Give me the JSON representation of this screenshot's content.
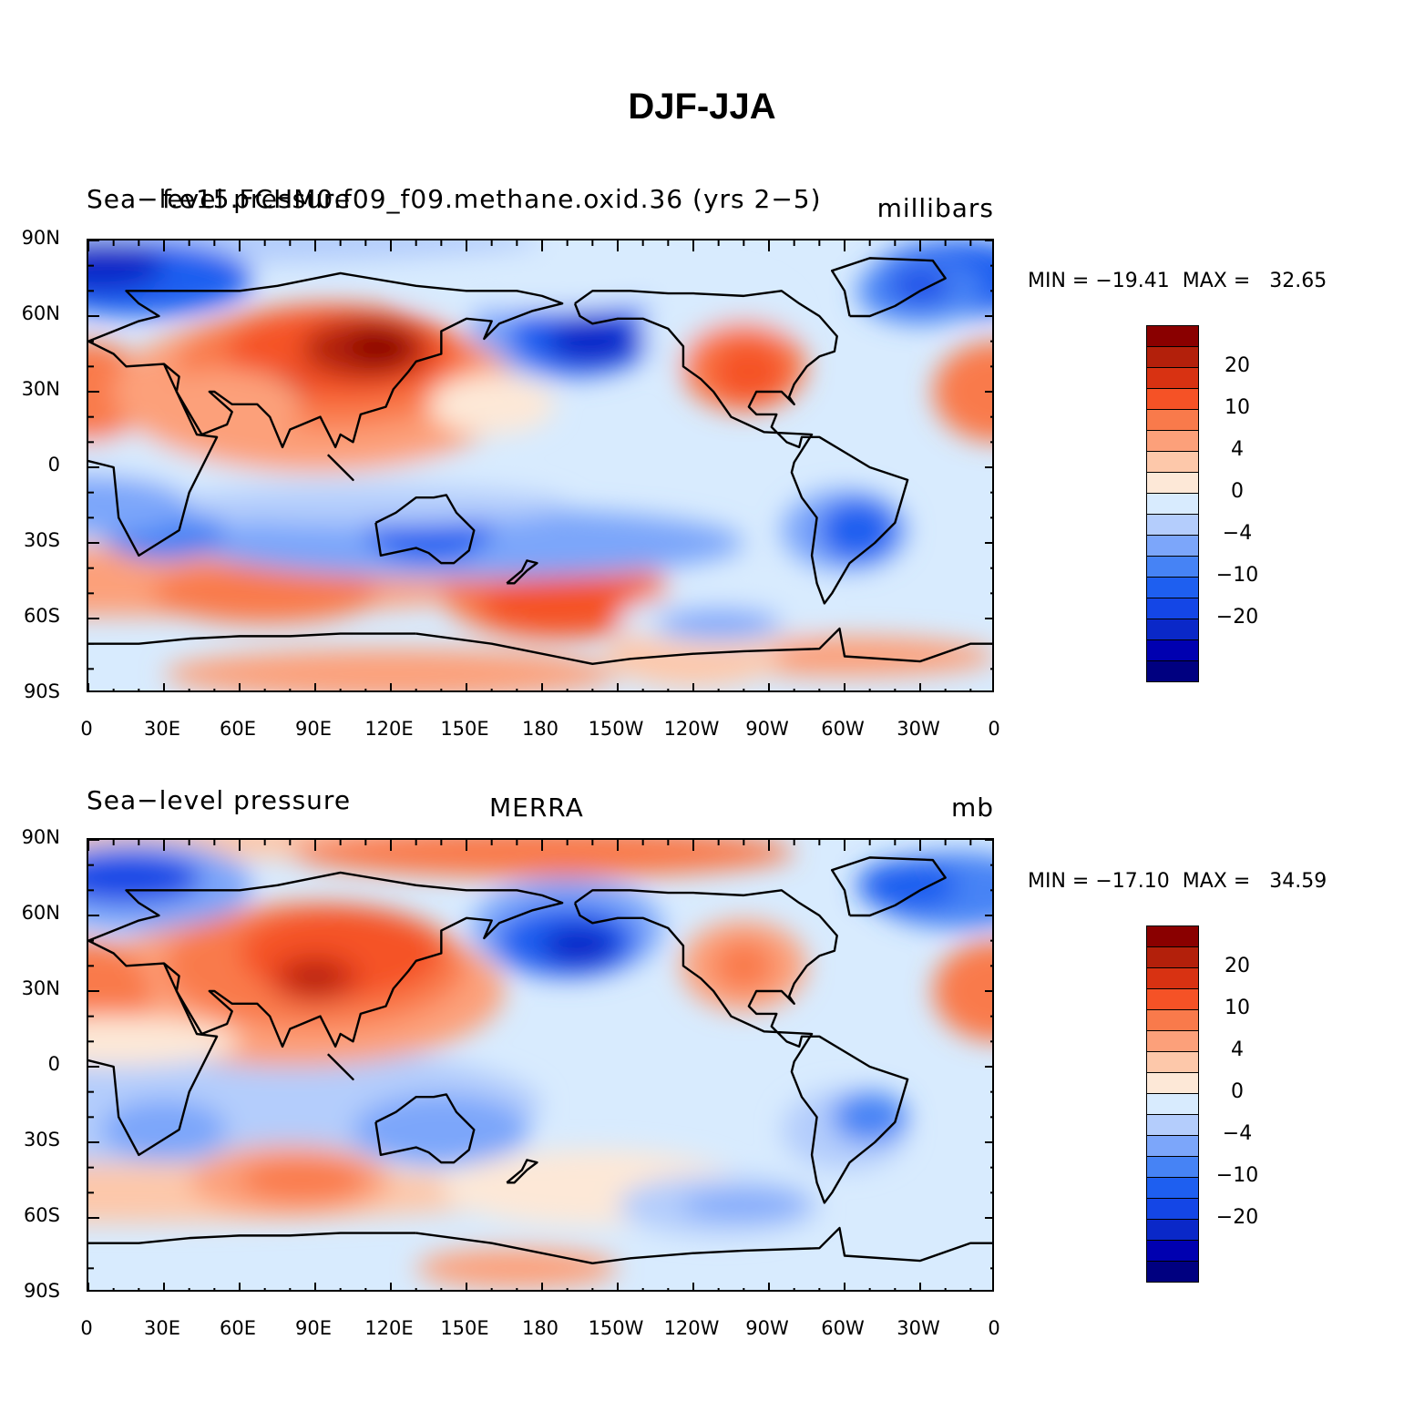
{
  "figure_title": "DJF-JJA",
  "colorbar_colors": [
    "#000080",
    "#0000b0",
    "#0a28c8",
    "#1446e6",
    "#1e5ff0",
    "#4683f5",
    "#7ca6fa",
    "#b4cdfc",
    "#d8ebfe",
    "#fde8d7",
    "#fdc8aa",
    "#fca07a",
    "#f97a4b",
    "#f55226",
    "#d83212",
    "#b3200b",
    "#8a0000"
  ],
  "colorbar_labels": [
    "−20",
    "−10",
    "−4",
    "0",
    "4",
    "10",
    "20"
  ],
  "lat_labels": [
    "90N",
    "60N",
    "30N",
    "0",
    "30S",
    "60S",
    "90S"
  ],
  "lon_labels": [
    "0",
    "30E",
    "60E",
    "90E",
    "120E",
    "150E",
    "180",
    "150W",
    "120W",
    "90W",
    "60W",
    "30W",
    "0"
  ],
  "panels": [
    {
      "left_title": "Sea−level pressure",
      "center_title": "f.e15.FCHM0.f09_f09.methane.oxid.36 (yrs 2−5)",
      "right_title": "millibars",
      "minmax": "MIN = −19.41  MAX =   32.65",
      "chart_data": {
        "type": "heatmap",
        "variable": "Sea-level pressure",
        "units": "millibars",
        "source": "f.e15.FCHM0.f09_f09.methane.oxid.36 (yrs 2-5)",
        "min": -19.41,
        "max": 32.65,
        "x_range": [
          0,
          360
        ],
        "y_range": [
          -90,
          90
        ],
        "contour_levels": [
          -24,
          -20,
          -16,
          -12,
          -10,
          -8,
          -6,
          -4,
          -2,
          0,
          2,
          4,
          6,
          8,
          10,
          12,
          16,
          20,
          24
        ]
      }
    },
    {
      "left_title": "Sea−level pressure",
      "center_title": "MERRA",
      "right_title": "mb",
      "minmax": "MIN = −17.10  MAX =   34.59",
      "chart_data": {
        "type": "heatmap",
        "variable": "Sea-level pressure",
        "units": "mb",
        "source": "MERRA",
        "min": -17.1,
        "max": 34.59,
        "x_range": [
          0,
          360
        ],
        "y_range": [
          -90,
          90
        ],
        "contour_levels": [
          -24,
          -20,
          -16,
          -12,
          -10,
          -8,
          -6,
          -4,
          -2,
          0,
          2,
          4,
          6,
          8,
          10,
          12,
          16,
          20,
          24
        ]
      }
    }
  ]
}
